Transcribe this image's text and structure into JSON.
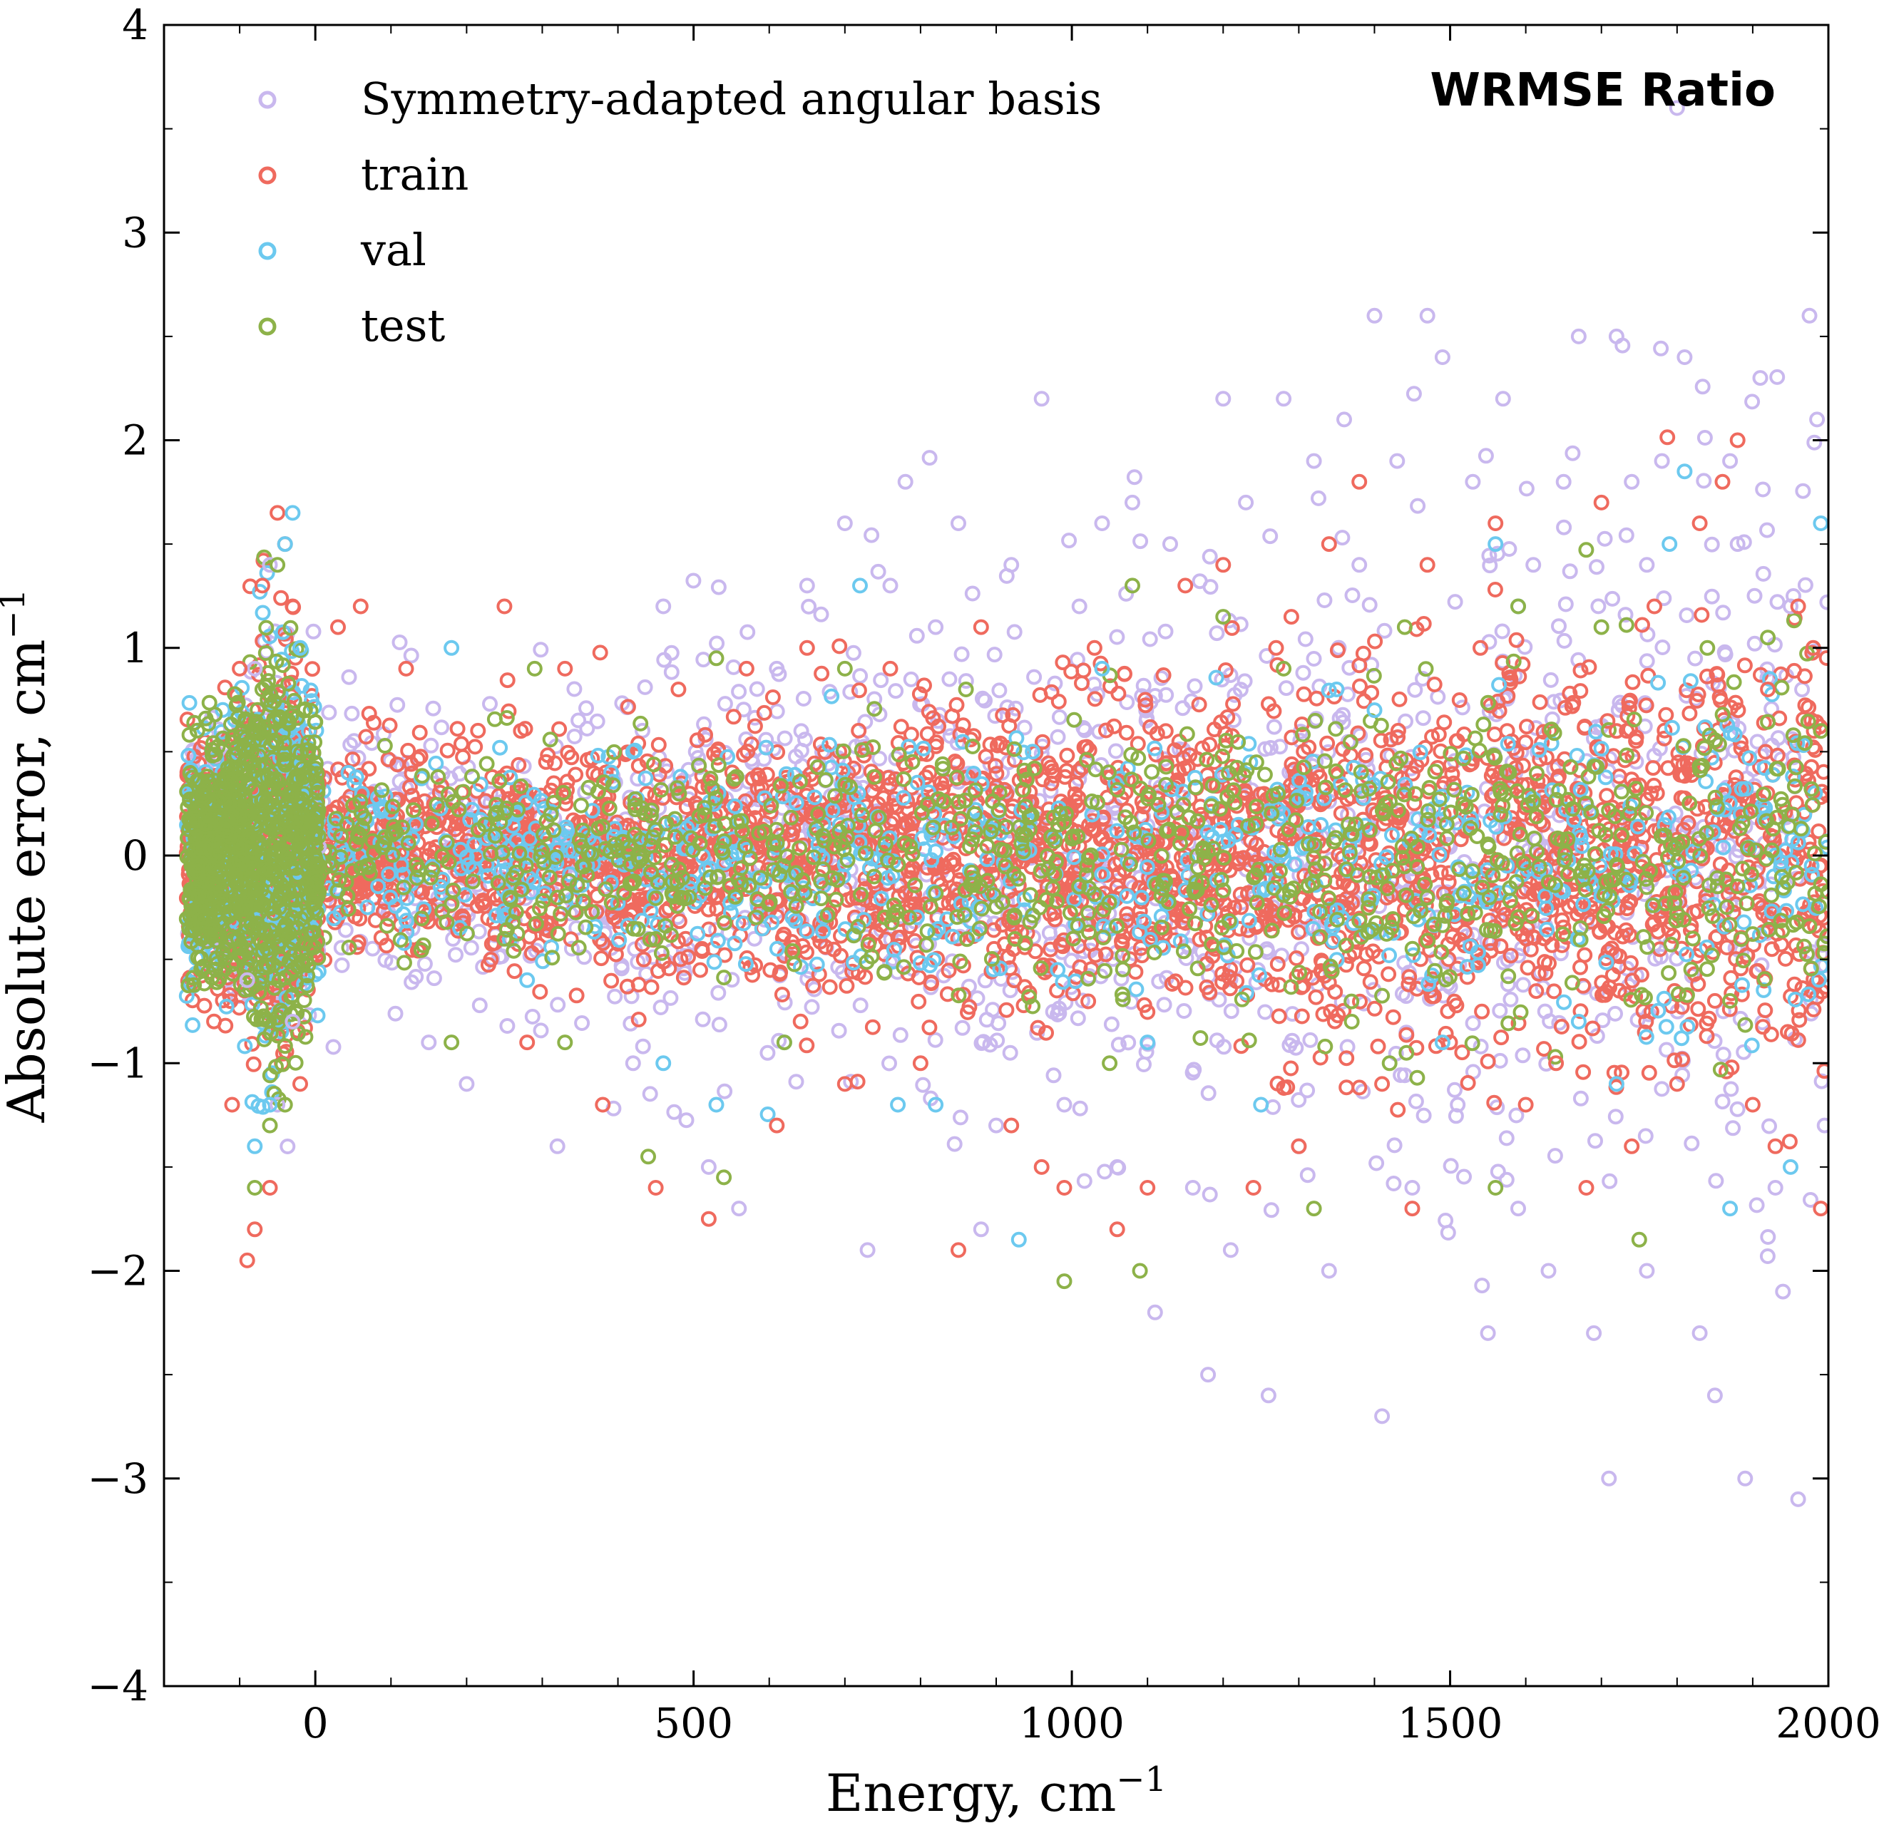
{
  "chart_data": {
    "type": "scatter",
    "annotation": "WRMSE Ratio",
    "xlabel": "Energy, cm",
    "xlabel_sup": "−1",
    "ylabel": "Absolute error, cm",
    "ylabel_sup": "−1",
    "xlim": [
      -200,
      2000
    ],
    "ylim": [
      -4,
      4
    ],
    "xticks": [
      {
        "value": 0,
        "label": "0"
      },
      {
        "value": 500,
        "label": "500"
      },
      {
        "value": 1000,
        "label": "1000"
      },
      {
        "value": 1500,
        "label": "1500"
      },
      {
        "value": 2000,
        "label": "2000"
      }
    ],
    "yticks": [
      {
        "value": -4,
        "label": "−4"
      },
      {
        "value": -3,
        "label": "−3"
      },
      {
        "value": -2,
        "label": "−2"
      },
      {
        "value": -1,
        "label": "−1"
      },
      {
        "value": 0,
        "label": "0"
      },
      {
        "value": 1,
        "label": "1"
      },
      {
        "value": 2,
        "label": "2"
      },
      {
        "value": 3,
        "label": "3"
      },
      {
        "value": 4,
        "label": "4"
      }
    ],
    "grid": false,
    "marker": "open-circle",
    "legend_position": "top-left",
    "series": [
      {
        "name": "Symmetry-adapted angular basis",
        "color": "#c9b8ee",
        "points": [
          [
            -60,
            1.4
          ],
          [
            -50,
            -1.2
          ],
          [
            -80,
            0.9
          ],
          [
            -30,
            -0.8
          ],
          [
            -90,
            -0.6
          ],
          [
            150,
            -0.9
          ],
          [
            200,
            -1.1
          ],
          [
            320,
            -1.4
          ],
          [
            420,
            -1.0
          ],
          [
            460,
            1.2
          ],
          [
            520,
            -1.5
          ],
          [
            560,
            -1.7
          ],
          [
            610,
            0.9
          ],
          [
            650,
            1.3
          ],
          [
            700,
            1.6
          ],
          [
            730,
            -1.9
          ],
          [
            760,
            1.3
          ],
          [
            780,
            1.8
          ],
          [
            820,
            1.1
          ],
          [
            850,
            1.6
          ],
          [
            880,
            -1.8
          ],
          [
            900,
            -1.3
          ],
          [
            920,
            1.4
          ],
          [
            960,
            2.2
          ],
          [
            990,
            -1.2
          ],
          [
            1010,
            1.2
          ],
          [
            1040,
            1.6
          ],
          [
            1060,
            -1.5
          ],
          [
            1080,
            1.7
          ],
          [
            1110,
            -2.2
          ],
          [
            1130,
            1.5
          ],
          [
            1160,
            -1.6
          ],
          [
            1180,
            -2.5
          ],
          [
            1200,
            2.2
          ],
          [
            1210,
            -1.9
          ],
          [
            1230,
            1.7
          ],
          [
            1260,
            -2.6
          ],
          [
            1280,
            2.2
          ],
          [
            1300,
            -1.4
          ],
          [
            1320,
            1.9
          ],
          [
            1340,
            -2.0
          ],
          [
            1360,
            2.1
          ],
          [
            1380,
            1.4
          ],
          [
            1400,
            2.6
          ],
          [
            1410,
            -2.7
          ],
          [
            1430,
            1.9
          ],
          [
            1450,
            -1.6
          ],
          [
            1470,
            2.6
          ],
          [
            1490,
            2.4
          ],
          [
            1510,
            -1.2
          ],
          [
            1530,
            1.8
          ],
          [
            1550,
            -2.3
          ],
          [
            1570,
            2.2
          ],
          [
            1590,
            -1.7
          ],
          [
            1610,
            1.4
          ],
          [
            1630,
            -2.0
          ],
          [
            1650,
            1.8
          ],
          [
            1670,
            2.5
          ],
          [
            1690,
            -2.3
          ],
          [
            1710,
            -3.0
          ],
          [
            1720,
            2.5
          ],
          [
            1740,
            1.8
          ],
          [
            1760,
            -2.0
          ],
          [
            1780,
            1.9
          ],
          [
            1800,
            3.6
          ],
          [
            1810,
            2.4
          ],
          [
            1830,
            -2.3
          ],
          [
            1850,
            -2.6
          ],
          [
            1870,
            1.9
          ],
          [
            1890,
            -3.0
          ],
          [
            1910,
            2.3
          ],
          [
            1930,
            -1.6
          ],
          [
            1950,
            1.2
          ],
          [
            1960,
            -3.1
          ],
          [
            1975,
            2.6
          ],
          [
            1985,
            2.1
          ],
          [
            1995,
            -1.3
          ],
          [
            1940,
            -2.1
          ],
          [
            1880,
            1.5
          ],
          [
            1760,
            1.4
          ]
        ]
      },
      {
        "name": "train",
        "color": "#ef6a5e",
        "points": [
          [
            -50,
            1.65
          ],
          [
            -40,
            1.5
          ],
          [
            -70,
            1.3
          ],
          [
            -80,
            -1.8
          ],
          [
            -90,
            -1.95
          ],
          [
            -60,
            -1.6
          ],
          [
            -30,
            1.2
          ],
          [
            -100,
            0.9
          ],
          [
            -110,
            -1.2
          ],
          [
            -20,
            -1.1
          ],
          [
            30,
            1.1
          ],
          [
            60,
            1.2
          ],
          [
            120,
            0.9
          ],
          [
            250,
            1.2
          ],
          [
            280,
            -0.9
          ],
          [
            330,
            0.9
          ],
          [
            380,
            -1.2
          ],
          [
            450,
            -1.6
          ],
          [
            480,
            0.8
          ],
          [
            520,
            -1.75
          ],
          [
            570,
            0.9
          ],
          [
            610,
            -1.3
          ],
          [
            650,
            1.0
          ],
          [
            700,
            -1.1
          ],
          [
            760,
            0.9
          ],
          [
            800,
            -1.0
          ],
          [
            850,
            -1.9
          ],
          [
            880,
            1.1
          ],
          [
            920,
            -1.3
          ],
          [
            960,
            -1.5
          ],
          [
            990,
            -1.6
          ],
          [
            1030,
            1.0
          ],
          [
            1060,
            -1.8
          ],
          [
            1100,
            -1.6
          ],
          [
            1150,
            1.3
          ],
          [
            1200,
            1.4
          ],
          [
            1240,
            -1.6
          ],
          [
            1270,
            1.0
          ],
          [
            1300,
            -1.4
          ],
          [
            1340,
            1.5
          ],
          [
            1380,
            1.8
          ],
          [
            1410,
            -1.1
          ],
          [
            1450,
            -1.7
          ],
          [
            1470,
            1.4
          ],
          [
            1500,
            -0.9
          ],
          [
            1540,
            1.0
          ],
          [
            1560,
            1.6
          ],
          [
            1600,
            -1.2
          ],
          [
            1640,
            -1.0
          ],
          [
            1680,
            -1.6
          ],
          [
            1700,
            1.7
          ],
          [
            1740,
            -1.4
          ],
          [
            1770,
            1.2
          ],
          [
            1800,
            -1.1
          ],
          [
            1830,
            1.6
          ],
          [
            1860,
            1.8
          ],
          [
            1880,
            2.0
          ],
          [
            1900,
            -1.2
          ],
          [
            1930,
            -1.4
          ],
          [
            1960,
            1.2
          ],
          [
            1990,
            -1.7
          ],
          [
            1980,
            1.0
          ],
          [
            1920,
            0.8
          ],
          [
            1850,
            -0.7
          ],
          [
            1720,
            0.6
          ]
        ]
      },
      {
        "name": "val",
        "color": "#6cc9ef",
        "points": [
          [
            -30,
            1.65
          ],
          [
            -40,
            1.5
          ],
          [
            -60,
            -1.2
          ],
          [
            -20,
            1.0
          ],
          [
            -80,
            -1.4
          ],
          [
            180,
            1.0
          ],
          [
            280,
            -0.6
          ],
          [
            420,
            0.5
          ],
          [
            460,
            -1.0
          ],
          [
            530,
            -1.2
          ],
          [
            620,
            -0.9
          ],
          [
            720,
            1.3
          ],
          [
            770,
            -1.2
          ],
          [
            820,
            -1.2
          ],
          [
            930,
            -1.85
          ],
          [
            1040,
            0.9
          ],
          [
            1100,
            -0.9
          ],
          [
            1250,
            -1.2
          ],
          [
            1350,
            0.8
          ],
          [
            1400,
            0.7
          ],
          [
            1490,
            -0.9
          ],
          [
            1560,
            1.5
          ],
          [
            1590,
            1.2
          ],
          [
            1670,
            -0.8
          ],
          [
            1720,
            -1.1
          ],
          [
            1790,
            1.5
          ],
          [
            1810,
            1.85
          ],
          [
            1870,
            -1.7
          ],
          [
            1950,
            -1.5
          ],
          [
            1990,
            1.6
          ]
        ]
      },
      {
        "name": "test",
        "color": "#8db249",
        "points": [
          [
            -50,
            1.4
          ],
          [
            -60,
            -1.3
          ],
          [
            -40,
            -1.2
          ],
          [
            -70,
            0.8
          ],
          [
            -80,
            -1.6
          ],
          [
            180,
            -0.9
          ],
          [
            290,
            0.9
          ],
          [
            330,
            -0.9
          ],
          [
            440,
            -1.45
          ],
          [
            530,
            0.95
          ],
          [
            540,
            -1.55
          ],
          [
            620,
            -0.9
          ],
          [
            700,
            0.9
          ],
          [
            860,
            0.8
          ],
          [
            990,
            -2.05
          ],
          [
            1050,
            -1.0
          ],
          [
            1080,
            1.3
          ],
          [
            1090,
            -2.0
          ],
          [
            1200,
            1.15
          ],
          [
            1280,
            0.9
          ],
          [
            1320,
            -1.7
          ],
          [
            1370,
            -0.8
          ],
          [
            1420,
            -1.0
          ],
          [
            1440,
            1.1
          ],
          [
            1560,
            -1.6
          ],
          [
            1590,
            1.2
          ],
          [
            1700,
            1.1
          ],
          [
            1750,
            -1.85
          ],
          [
            1840,
            1.0
          ],
          [
            1870,
            -0.7
          ],
          [
            1920,
            1.05
          ],
          [
            1990,
            0.6
          ]
        ]
      }
    ]
  }
}
